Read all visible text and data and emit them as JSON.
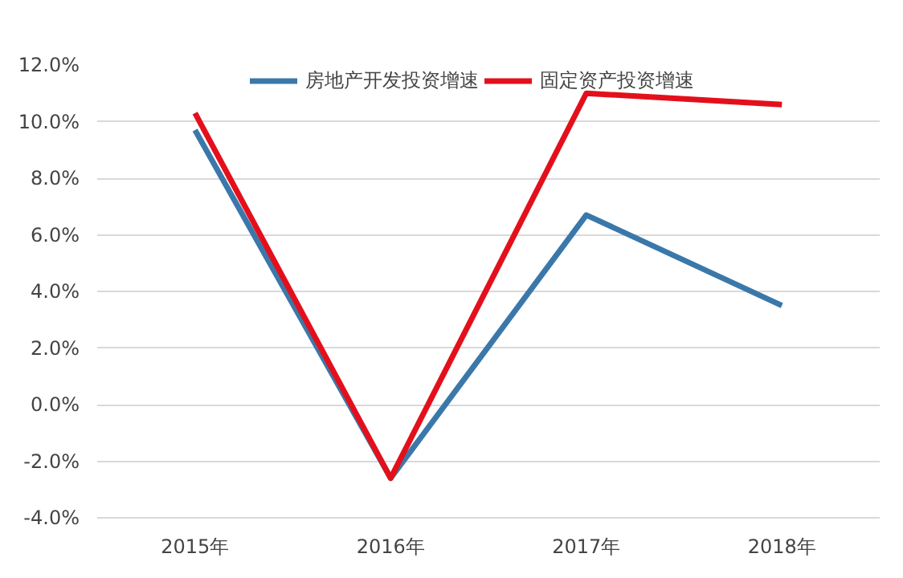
{
  "chart_data": {
    "type": "line",
    "categories": [
      "2015年",
      "2016年",
      "2017年",
      "2018年"
    ],
    "series": [
      {
        "name": "房地产开发投资增速",
        "color": "#3b78aa",
        "values": [
          9.7,
          -2.6,
          6.7,
          3.5
        ]
      },
      {
        "name": "固定资产投资增速",
        "color": "#e3101c",
        "values": [
          10.3,
          -2.6,
          11.0,
          10.6
        ]
      }
    ],
    "ylim": [
      -4,
      12
    ],
    "yticks": [
      {
        "value": -4,
        "label": "-4.0%"
      },
      {
        "value": -2,
        "label": "-2.0%"
      },
      {
        "value": 0,
        "label": "0.0%"
      },
      {
        "value": 2,
        "label": "2.0%"
      },
      {
        "value": 4,
        "label": "4.0%"
      },
      {
        "value": 6,
        "label": "6.0%"
      },
      {
        "value": 8,
        "label": "8.0%"
      },
      {
        "value": 10,
        "label": "10.0%"
      },
      {
        "value": 12,
        "label": "12.0%"
      }
    ],
    "grid": "y",
    "legend": "top",
    "marker": "none",
    "line_style": "solid"
  }
}
